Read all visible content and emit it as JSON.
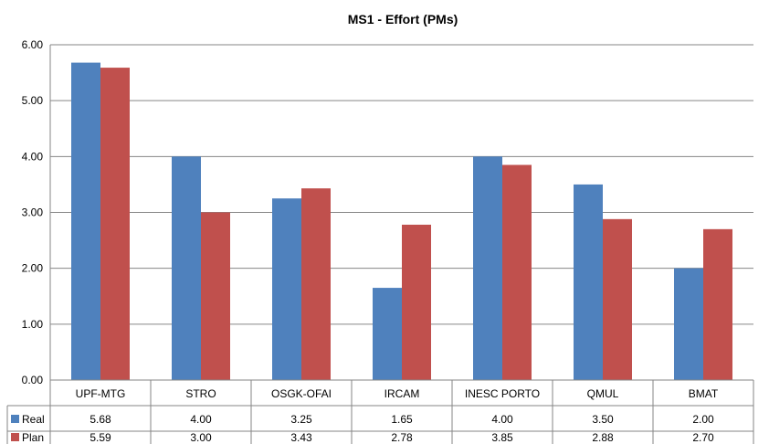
{
  "chart_data": {
    "type": "bar",
    "title": "MS1 - Effort (PMs)",
    "categories": [
      "UPF-MTG",
      "STRO",
      "OSGK-OFAI",
      "IRCAM",
      "INESC PORTO",
      "QMUL",
      "BMAT"
    ],
    "series": [
      {
        "name": "Real",
        "color": "#4F81BD",
        "values": [
          5.68,
          4.0,
          3.25,
          1.65,
          4.0,
          3.5,
          2.0
        ],
        "labels": [
          "5.68",
          "4.00",
          "3.25",
          "1.65",
          "4.00",
          "3.50",
          "2.00"
        ]
      },
      {
        "name": "Plan",
        "color": "#C0504D",
        "values": [
          5.59,
          3.0,
          3.43,
          2.78,
          3.85,
          2.88,
          2.7
        ],
        "labels": [
          "5.59",
          "3.00",
          "3.43",
          "2.78",
          "3.85",
          "2.88",
          "2.70"
        ]
      }
    ],
    "ylim": [
      0,
      6
    ],
    "yticks": [
      "0.00",
      "1.00",
      "2.00",
      "3.00",
      "4.00",
      "5.00",
      "6.00"
    ],
    "grid": true,
    "legend": "data-table-below"
  }
}
